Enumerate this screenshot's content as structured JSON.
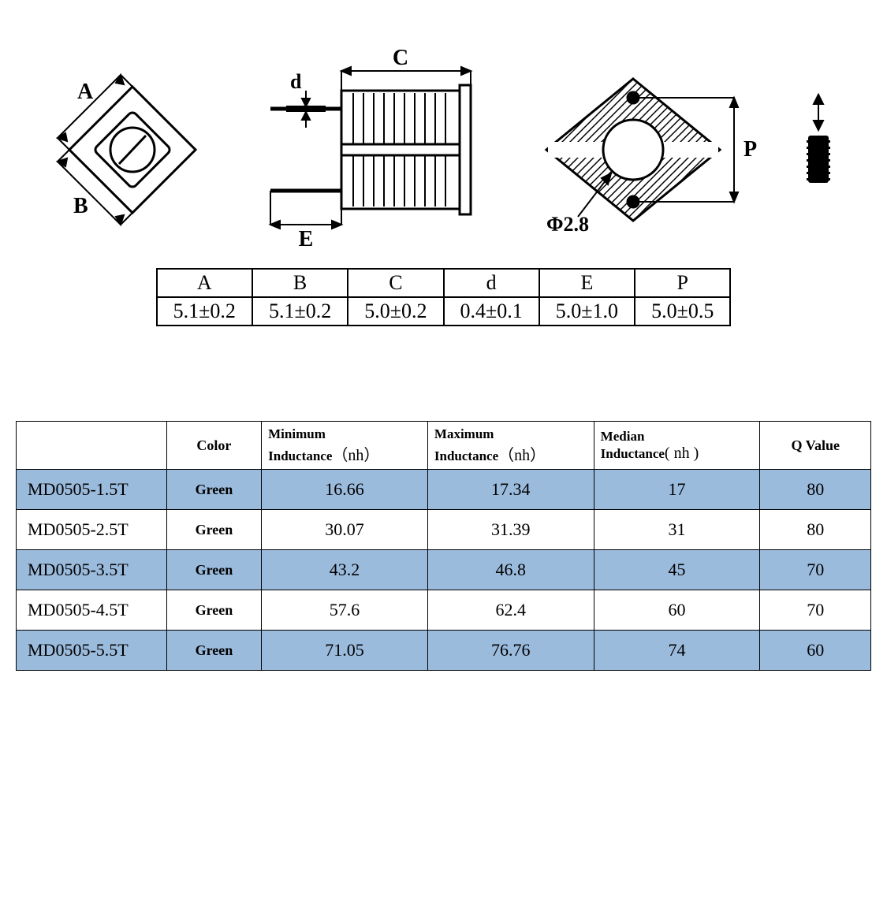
{
  "dimensions_table": {
    "columns": [
      "A",
      "B",
      "C",
      "d",
      "E",
      "P"
    ],
    "values": [
      "5.1±0.2",
      "5.1±0.2",
      "5.0±0.2",
      "0.4±0.1",
      "5.0±1.0",
      "5.0±0.5"
    ]
  },
  "diagram_labels": {
    "A": "A",
    "B": "B",
    "C": "C",
    "d": "d",
    "E": "E",
    "P": "P",
    "phi": "Φ2.8"
  },
  "spec_table": {
    "header_bg": "#ffffff",
    "row_alt_bg": "#9bbbdd",
    "border_color": "#000000",
    "columns": [
      {
        "label": "",
        "sub": ""
      },
      {
        "label": "Color",
        "sub": ""
      },
      {
        "label": "Minimum",
        "sub": "Inductance",
        "unit": "（nh）"
      },
      {
        "label": "Maximum",
        "sub": "Inductance",
        "unit": "（nh）"
      },
      {
        "label": "Median",
        "sub": "Inductance",
        "unit": "( nh )"
      },
      {
        "label": "Q Value",
        "sub": ""
      }
    ],
    "rows": [
      {
        "model": "MD0505-1.5T",
        "color": "Green",
        "min": "16.66",
        "max": "17.34",
        "median": "17",
        "q": "80",
        "alt": true
      },
      {
        "model": "MD0505-2.5T",
        "color": "Green",
        "min": "30.07",
        "max": "31.39",
        "median": "31",
        "q": "80",
        "alt": false
      },
      {
        "model": "MD0505-3.5T",
        "color": "Green",
        "min": "43.2",
        "max": "46.8",
        "median": "45",
        "q": "70",
        "alt": true
      },
      {
        "model": "MD0505-4.5T",
        "color": "Green",
        "min": "57.6",
        "max": "62.4",
        "median": "60",
        "q": "70",
        "alt": false
      },
      {
        "model": "MD0505-5.5T",
        "color": "Green",
        "min": "71.05",
        "max": "76.76",
        "median": "74",
        "q": "60",
        "alt": true
      }
    ]
  }
}
